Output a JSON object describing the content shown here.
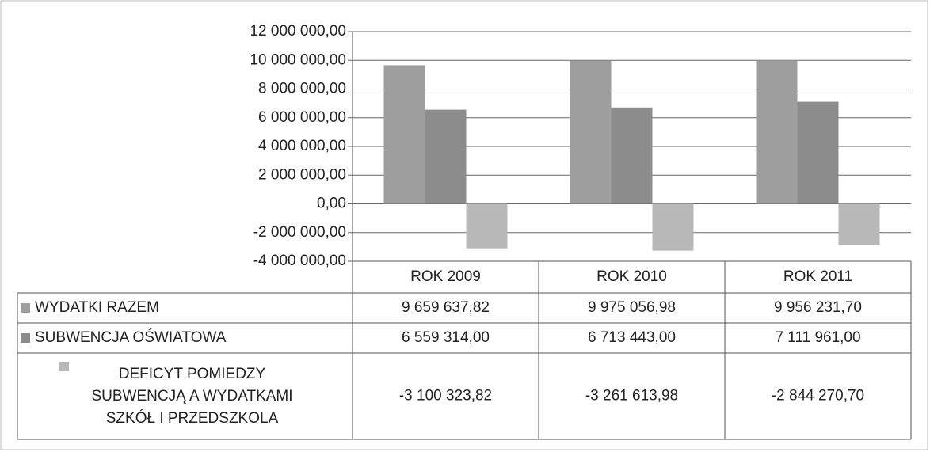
{
  "chart_data": {
    "type": "bar",
    "categories": [
      "ROK 2009",
      "ROK 2010",
      "ROK 2011"
    ],
    "series": [
      {
        "name": "WYDATKI RAZEM",
        "color": "#9e9e9e",
        "values": [
          9659637.82,
          9975056.98,
          9956231.7
        ],
        "value_labels": [
          "9 659 637,82",
          "9 975 056,98",
          "9 956 231,70"
        ]
      },
      {
        "name": "SUBWENCJA OŚWIATOWA",
        "color": "#8c8c8c",
        "values": [
          6559314.0,
          6713443.0,
          7111961.0
        ],
        "value_labels": [
          "6 559 314,00",
          "6 713 443,00",
          "7 111 961,00"
        ]
      },
      {
        "name": "DEFICYT POMIEDZY SUBWENCJĄ A WYDATKAMI SZKÓŁ I PRZEDSZKOLA",
        "color": "#b8b8b8",
        "values": [
          -3100323.82,
          -3261613.98,
          -2844270.7
        ],
        "value_labels": [
          "-3 100 323,82",
          "-3 261 613,98",
          "-2 844 270,70"
        ]
      }
    ],
    "ylim": [
      -4000000,
      12000000
    ],
    "yticks": [
      {
        "value": 12000000,
        "label": "12 000 000,00"
      },
      {
        "value": 10000000,
        "label": "10 000 000,00"
      },
      {
        "value": 8000000,
        "label": "8 000 000,00"
      },
      {
        "value": 6000000,
        "label": "6 000 000,00"
      },
      {
        "value": 4000000,
        "label": "4 000 000,00"
      },
      {
        "value": 2000000,
        "label": "2 000 000,00"
      },
      {
        "value": 0,
        "label": "0,00"
      },
      {
        "value": -2000000,
        "label": "-2 000 000,00"
      },
      {
        "value": -4000000,
        "label": "-4 000 000,00"
      }
    ],
    "grid": true
  }
}
